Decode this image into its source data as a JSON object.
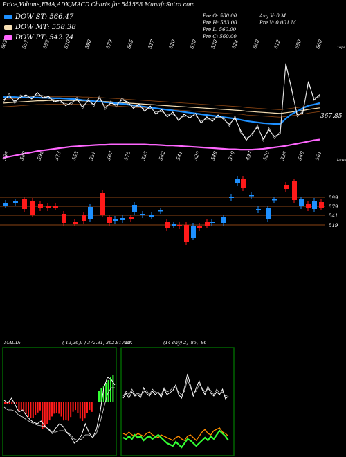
{
  "header": {
    "title": "Price,Volume,EMA,ADX,MACD Charts for 541558  MunafaSutra.com"
  },
  "legend": [
    {
      "label": "DOW ST: 566.47",
      "color": "#1e90ff"
    },
    {
      "label": "DOW MT: 558.38",
      "color": "#f5deb3"
    },
    {
      "label": "DOW PT: 542.74",
      "color": "#ff66ff"
    }
  ],
  "ohlc": {
    "open": "Pre  O: 580.00",
    "high": "Pre  H: 583.00",
    "low": "Pre  L: 560.00",
    "close": "Pre  C: 560.00",
    "avg_vol": "Avg V: 0  M",
    "vol": "Pre  V: 0.001 M"
  },
  "colors": {
    "up": "#1e90ff",
    "down": "#ff1a1a",
    "price": "#ffffff",
    "ema_st": "#1e90ff",
    "ema_mt": "#f5deb3",
    "ema_pt": "#ff66ff",
    "grid": "#8b4513",
    "macd_up": "#33ff33",
    "macd_down": "#ff1a1a",
    "adx_green": "#33ff33",
    "adx_orange": "#ff8c00"
  },
  "chart_data": [
    {
      "type": "line",
      "name": "price-ema",
      "top_label": "Tops",
      "bottom_label": "Lows",
      "last_value_label": "367.85",
      "top_values": [
        "663",
        "551",
        "593",
        "570",
        "590",
        "579",
        "565",
        "527",
        "520",
        "530",
        "530",
        "524",
        "648",
        "612",
        "590",
        "560"
      ],
      "low_values": [
        "588",
        "580",
        "594",
        "573",
        "553",
        "551",
        "567",
        "575",
        "555",
        "542",
        "541",
        "520",
        "549",
        "510",
        "497",
        "520",
        "528",
        "540",
        "561"
      ],
      "close": [
        560,
        572,
        556,
        568,
        574,
        563,
        580,
        566,
        570,
        555,
        560,
        545,
        553,
        562,
        542,
        558,
        548,
        566,
        540,
        552,
        547,
        561,
        555,
        538,
        549,
        530,
        544,
        522,
        535,
        515,
        528,
        505,
        522,
        512,
        524,
        498,
        515,
        503,
        520,
        508,
        495,
        512,
        478,
        452,
        470,
        488,
        455,
        480,
        462,
        470,
        658,
        590,
        521,
        525,
        610,
        560,
        575
      ],
      "ema_st": [
        568,
        568,
        568,
        567,
        567,
        567,
        567,
        566,
        566,
        565,
        565,
        564,
        563,
        562,
        560,
        559,
        557,
        556,
        554,
        553,
        551,
        550,
        548,
        546,
        544,
        542,
        540,
        538,
        536,
        534,
        532,
        530,
        528,
        526,
        524,
        522,
        520,
        518,
        516,
        514,
        512,
        510,
        507,
        504,
        502,
        500,
        498,
        497,
        496,
        496,
        510,
        522,
        530,
        538,
        545,
        548,
        552
      ],
      "ema_mt": [
        552,
        553,
        554,
        555,
        556,
        557,
        558,
        558,
        559,
        559,
        559,
        559,
        559,
        559,
        558,
        558,
        557,
        557,
        556,
        555,
        554,
        553,
        552,
        551,
        550,
        549,
        548,
        547,
        546,
        545,
        544,
        543,
        542,
        541,
        540,
        539,
        538,
        537,
        536,
        535,
        534,
        533,
        532,
        530,
        529,
        528,
        527,
        526,
        525,
        524,
        526,
        528,
        530,
        532,
        535,
        537,
        539
      ],
      "ema_pt": [
        405,
        408,
        411,
        414,
        417,
        420,
        423,
        425,
        427,
        429,
        431,
        433,
        435,
        436,
        437,
        438,
        439,
        440,
        440,
        441,
        441,
        441,
        441,
        441,
        441,
        441,
        440,
        440,
        439,
        438,
        438,
        437,
        436,
        435,
        434,
        433,
        432,
        431,
        430,
        429,
        428,
        428,
        427,
        427,
        427,
        428,
        429,
        431,
        433,
        435,
        437,
        440,
        443,
        446,
        449,
        452,
        454
      ]
    },
    {
      "type": "bar",
      "name": "candlesticks",
      "price_labels": [
        "599",
        "579",
        "541",
        "519"
      ]
    },
    {
      "type": "bar",
      "name": "macd",
      "label": "MACD:",
      "params": "( 12,26,9 ) 372.81,  362.81,  10"
    },
    {
      "type": "line",
      "name": "adx",
      "label": "ADX",
      "params": "(14  day) 2,  -85,  -86"
    }
  ]
}
